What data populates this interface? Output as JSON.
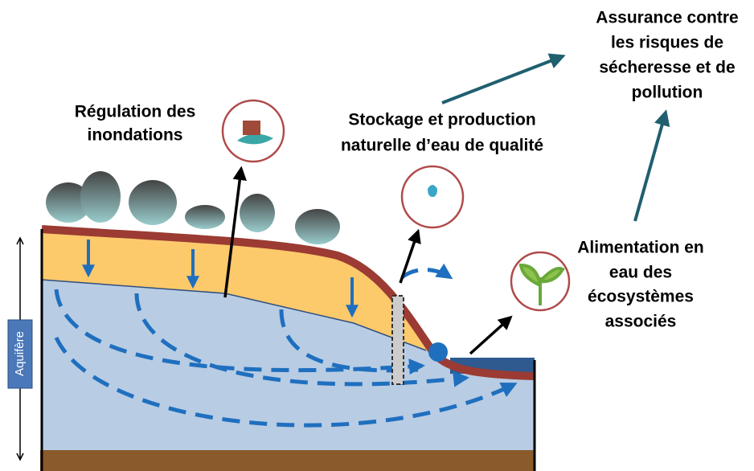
{
  "labels": {
    "flood_regulation": {
      "lines": [
        "Régulation des",
        "inondations"
      ]
    },
    "storage": {
      "lines": [
        "Stockage et production",
        "naturelle d’eau de qualité"
      ]
    },
    "insurance": {
      "lines": [
        "Assurance contre",
        "les risques de",
        "sécheresse et de",
        "pollution"
      ]
    },
    "ecosystems": {
      "lines": [
        "Alimentation en",
        "eau des",
        "écosystèmes",
        "associés"
      ]
    },
    "aquifer": "Aquifère"
  }
}
